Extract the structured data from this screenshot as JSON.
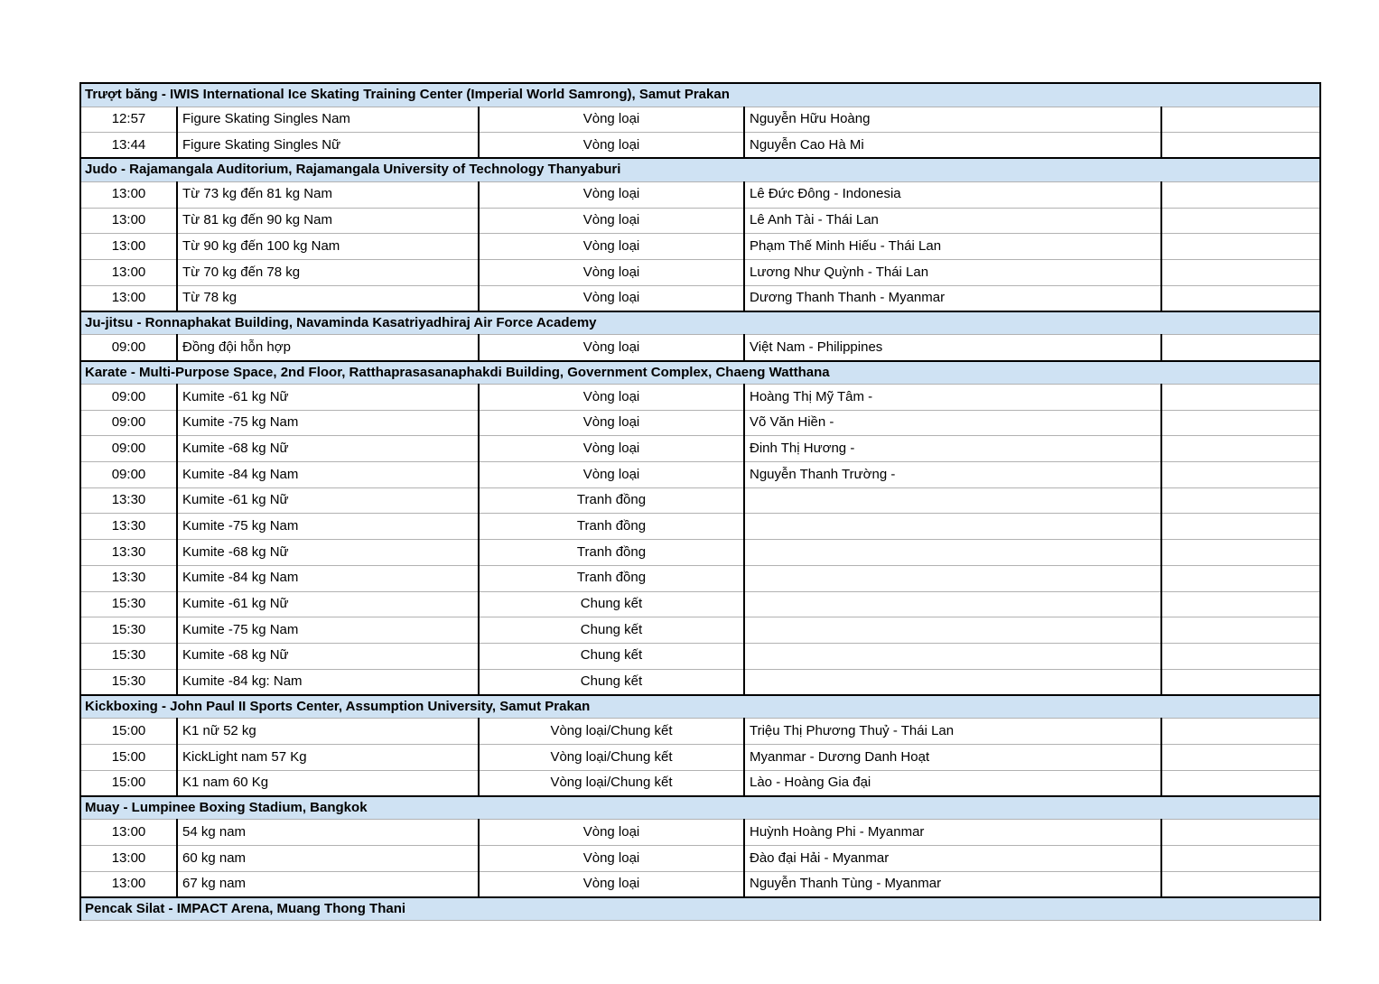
{
  "colors": {
    "section_header_bg": "#cfe2f3",
    "grid_line_black": "#000000",
    "grid_line_gray": "#b2b2b2",
    "text": "#000000",
    "page_bg": "#ffffff"
  },
  "table": {
    "column_keys": [
      "time",
      "event",
      "round",
      "athletes",
      "notes"
    ],
    "sections": [
      {
        "title": "Trượt băng - IWIS International Ice Skating Training Center (Imperial World Samrong), Samut Prakan",
        "rows": [
          [
            "12:57",
            "Figure Skating Singles Nam",
            "Vòng loại",
            "Nguyễn Hữu Hoàng",
            ""
          ],
          [
            "13:44",
            "Figure Skating Singles Nữ",
            "Vòng loại",
            "Nguyễn Cao Hà Mi",
            ""
          ]
        ]
      },
      {
        "title": "Judo - Rajamangala Auditorium, Rajamangala University of Technology Thanyaburi",
        "rows": [
          [
            "13:00",
            "Từ 73 kg đến 81 kg Nam",
            "Vòng loại",
            "Lê Đức Đông - Indonesia",
            ""
          ],
          [
            "13:00",
            "Từ 81 kg đến 90 kg Nam",
            "Vòng loại",
            "Lê Anh Tài - Thái Lan",
            ""
          ],
          [
            "13:00",
            "Từ 90 kg đến 100 kg Nam",
            "Vòng loại",
            "Phạm Thế Minh Hiếu - Thái Lan",
            ""
          ],
          [
            "13:00",
            "Từ 70 kg đến 78 kg",
            "Vòng loại",
            "Lương Như Quỳnh - Thái Lan",
            ""
          ],
          [
            "13:00",
            "Từ 78 kg",
            "Vòng loại",
            "Dương Thanh Thanh - Myanmar",
            ""
          ]
        ]
      },
      {
        "title": "Ju-jitsu - Ronnaphakat Building, Navaminda Kasatriyadhiraj Air Force Academy",
        "rows": [
          [
            "09:00",
            "Đồng đội hỗn hợp",
            "Vòng loại",
            "Việt Nam - Philippines",
            ""
          ]
        ]
      },
      {
        "title": "Karate - Multi-Purpose Space, 2nd Floor, Ratthaprasasanaphakdi Building, Government Complex, Chaeng Watthana",
        "rows": [
          [
            "09:00",
            "Kumite -61 kg Nữ",
            "Vòng loại",
            "Hoàng Thị Mỹ Tâm -",
            ""
          ],
          [
            "09:00",
            "Kumite -75 kg Nam",
            "Vòng loại",
            "Võ Văn Hiền -",
            ""
          ],
          [
            "09:00",
            "Kumite -68 kg Nữ",
            "Vòng loại",
            "Đinh Thị Hương -",
            ""
          ],
          [
            "09:00",
            "Kumite -84 kg Nam",
            "Vòng loại",
            "Nguyễn Thanh Trường -",
            ""
          ],
          [
            "13:30",
            "Kumite -61 kg Nữ",
            "Tranh đồng",
            "",
            ""
          ],
          [
            "13:30",
            "Kumite -75 kg Nam",
            "Tranh đồng",
            "",
            ""
          ],
          [
            "13:30",
            "Kumite -68 kg Nữ",
            "Tranh đồng",
            "",
            ""
          ],
          [
            "13:30",
            "Kumite -84 kg Nam",
            "Tranh đồng",
            "",
            ""
          ],
          [
            "15:30",
            "Kumite -61 kg Nữ",
            "Chung kết",
            "",
            ""
          ],
          [
            "15:30",
            "Kumite -75 kg Nam",
            "Chung kết",
            "",
            ""
          ],
          [
            "15:30",
            "Kumite -68 kg Nữ",
            "Chung kết",
            "",
            ""
          ],
          [
            "15:30",
            "Kumite -84 kg: Nam",
            "Chung kết",
            "",
            ""
          ]
        ]
      },
      {
        "title": "Kickboxing - John Paul II Sports Center, Assumption University, Samut Prakan",
        "rows": [
          [
            "15:00",
            "K1 nữ 52 kg",
            "Vòng loại/Chung kết",
            "Triệu Thị Phương Thuỷ - Thái Lan",
            ""
          ],
          [
            "15:00",
            "KickLight nam 57 Kg",
            "Vòng loại/Chung kết",
            "Myanmar - Dương Danh Hoạt",
            ""
          ],
          [
            "15:00",
            "K1 nam 60 Kg",
            "Vòng loại/Chung kết",
            "Lào - Hoàng Gia đại",
            ""
          ]
        ]
      },
      {
        "title": "Muay - Lumpinee Boxing Stadium, Bangkok",
        "rows": [
          [
            "13:00",
            "54 kg nam",
            "Vòng loại",
            "Huỳnh Hoàng Phi - Myanmar",
            ""
          ],
          [
            "13:00",
            "60 kg nam",
            "Vòng loại",
            "Đào đại Hải - Myanmar",
            ""
          ],
          [
            "13:00",
            "67 kg nam",
            "Vòng loại",
            "Nguyễn Thanh Tùng - Myanmar",
            ""
          ]
        ]
      },
      {
        "title": "Pencak Silat - IMPACT Arena, Muang Thong Thani",
        "rows": []
      }
    ]
  }
}
